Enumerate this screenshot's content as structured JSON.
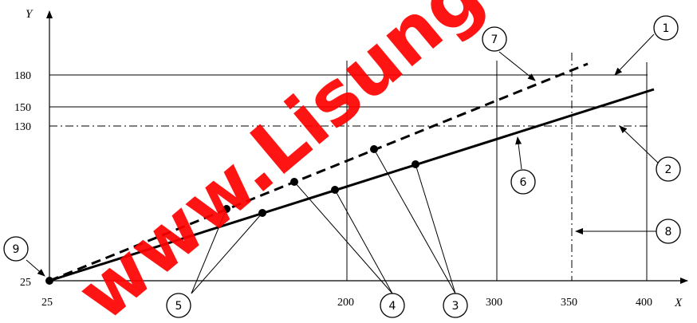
{
  "axes": {
    "x_title": "X",
    "y_title": "Y",
    "x_ticks": [
      "25",
      "200",
      "300",
      "350",
      "400"
    ],
    "y_ticks": [
      "25",
      "130",
      "150",
      "180"
    ]
  },
  "callouts": [
    "1",
    "2",
    "3",
    "4",
    "5",
    "6",
    "7",
    "8",
    "9"
  ],
  "watermark": {
    "text": "www.Lisung",
    "color": "#ff0000"
  },
  "colors": {
    "lines": "#000000",
    "background": "#ffffff"
  }
}
